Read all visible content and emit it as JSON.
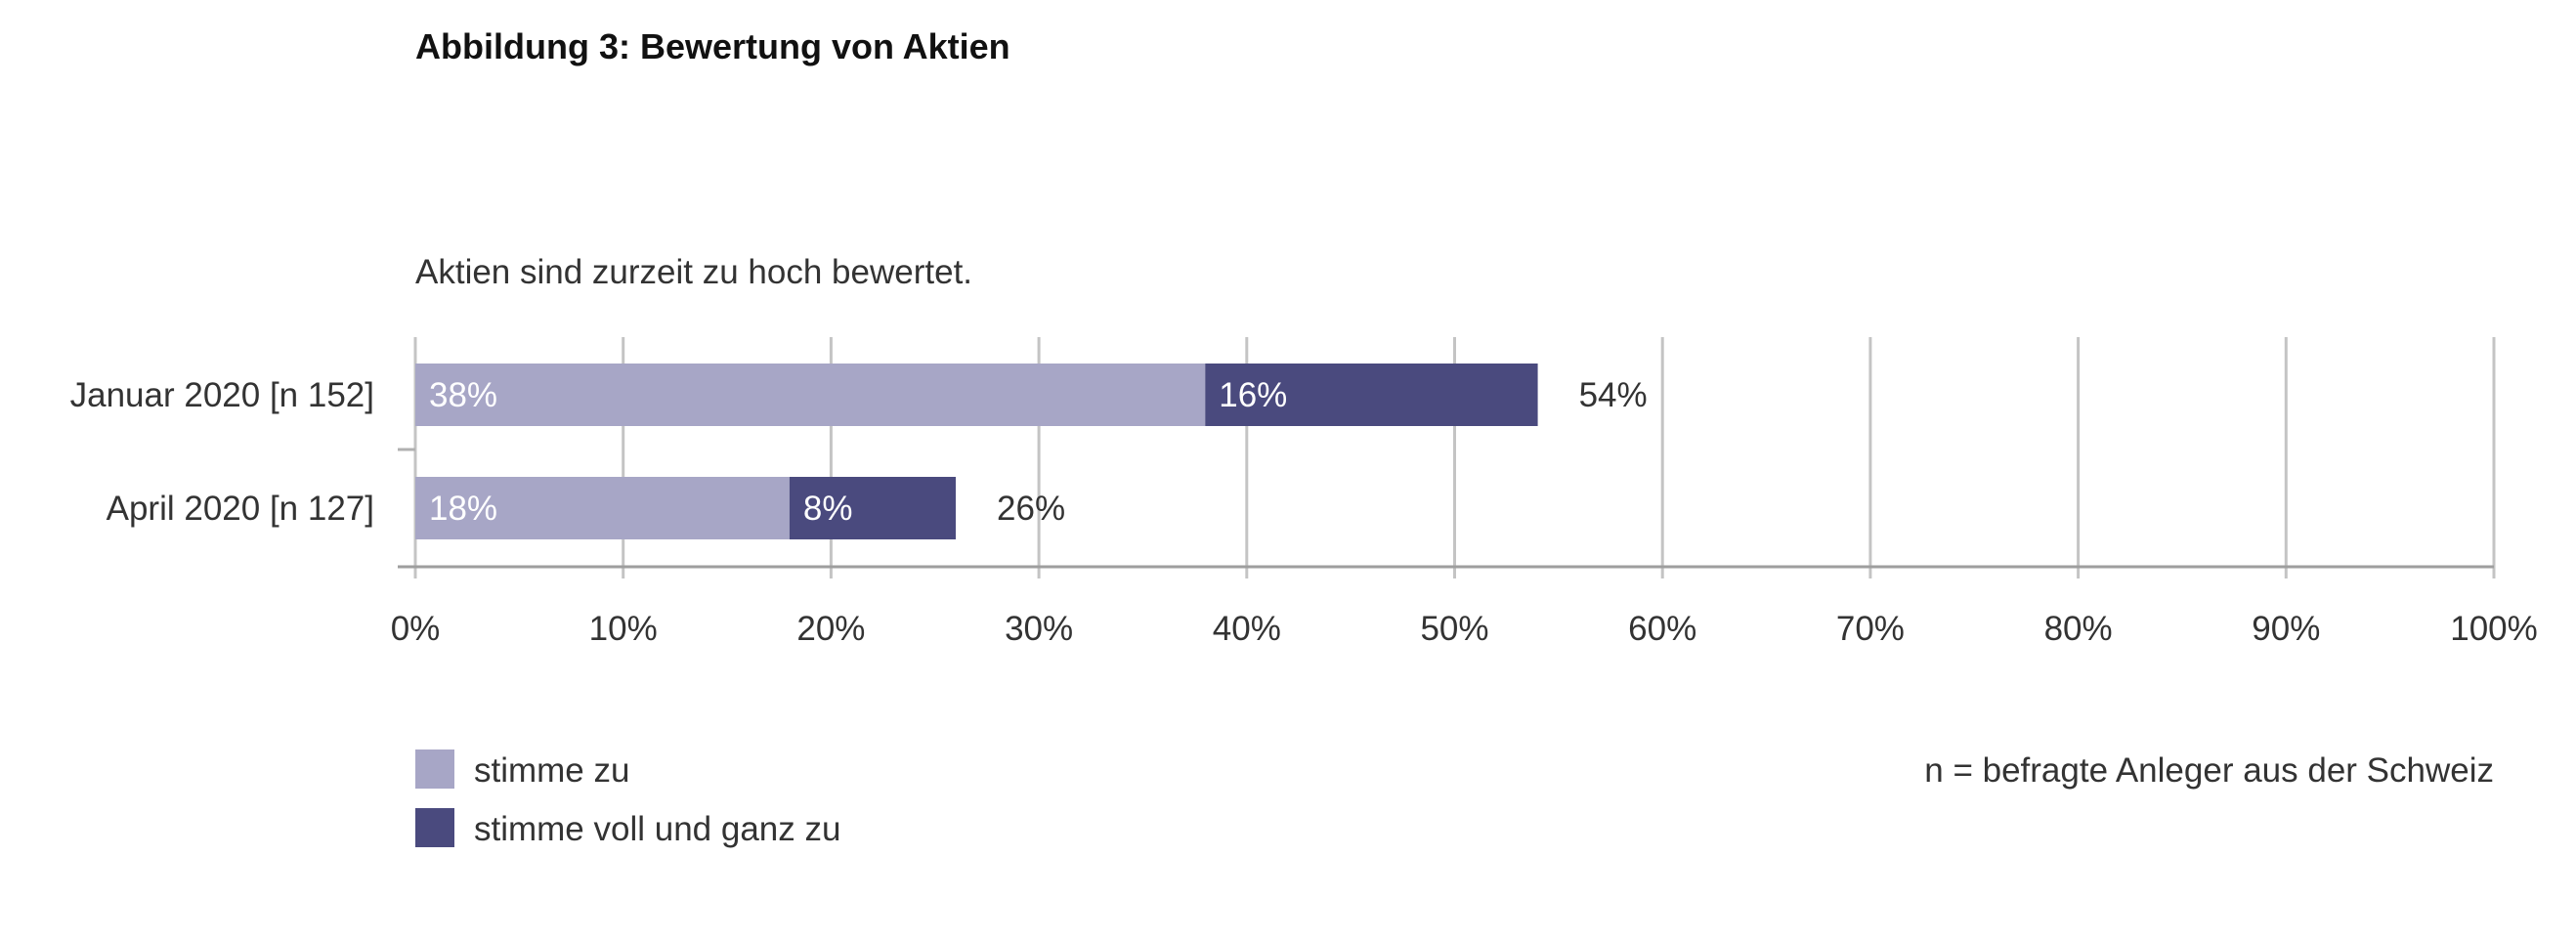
{
  "chart_data": {
    "type": "bar",
    "orientation": "horizontal",
    "stacked": true,
    "title": "Abbildung 3: Bewertung von Aktien",
    "subtitle": "Aktien sind zurzeit zu hoch bewertet.",
    "categories": [
      "Januar 2020 [n 152]",
      "April 2020 [n 127]"
    ],
    "series": [
      {
        "name": "stimme zu",
        "color": "#a7a6c6",
        "values": [
          38,
          18
        ],
        "labels": [
          "38%",
          "18%"
        ]
      },
      {
        "name": "stimme voll und ganz zu",
        "color": "#4a4a7e",
        "values": [
          16,
          8
        ],
        "labels": [
          "16%",
          "8%"
        ]
      }
    ],
    "totals": [
      54,
      26
    ],
    "total_labels": [
      "54%",
      "26%"
    ],
    "xlim": [
      0,
      100
    ],
    "xticks": [
      0,
      10,
      20,
      30,
      40,
      50,
      60,
      70,
      80,
      90,
      100
    ],
    "xtick_labels": [
      "0%",
      "10%",
      "20%",
      "30%",
      "40%",
      "50%",
      "60%",
      "70%",
      "80%",
      "90%",
      "100%"
    ],
    "grid": true,
    "legend_position": "bottom-left",
    "footnote": "n = befragte Anleger aus der Schweiz"
  }
}
